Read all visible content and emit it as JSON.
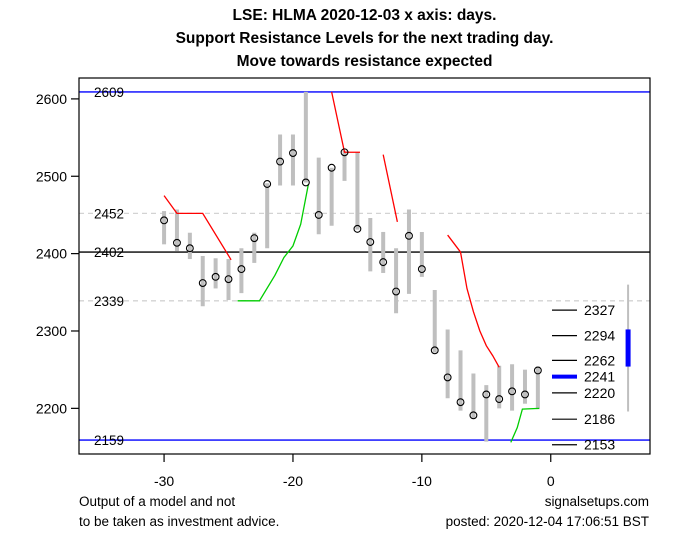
{
  "title": {
    "line1": "LSE: HLMA 2020-12-03 x axis: days.",
    "line2": "Support Resistance Levels for the next trading day.",
    "line3": "Move towards resistance expected"
  },
  "footer": {
    "left_line1": "Output of a model and not",
    "left_line2": "to be taken as investment advice.",
    "right_line1": "signalsetups.com",
    "right_line2": "posted: 2020-12-04 17:06:51 BST"
  },
  "colors": {
    "bar_gray": "#BFBFBF",
    "dashed_gray": "#D3D3D3",
    "level_blue": "#0000FF",
    "axis_black": "#000000",
    "trend_red": "#FF0000",
    "trend_green": "#00CD00",
    "forecast_blue": "#0000FF",
    "forecast_whisker": "#BFBFBF"
  },
  "chart_data": {
    "type": "hlc-candlestick",
    "xlabel": "days",
    "x_ticks": [
      -30,
      -20,
      -10,
      0
    ],
    "y_ticks": [
      2200,
      2300,
      2400,
      2500,
      2600
    ],
    "xlim": [
      -36.6,
      7.7
    ],
    "ylim": [
      2141,
      2627
    ],
    "grid": "off",
    "levels": [
      {
        "label": "2609",
        "value": 2609,
        "color": "blue",
        "style": "solid"
      },
      {
        "label": "2452",
        "value": 2452,
        "color": "gray",
        "style": "dashed"
      },
      {
        "label": "2402",
        "value": 2402,
        "color": "black",
        "style": "solid"
      },
      {
        "label": "2339",
        "value": 2339,
        "color": "gray",
        "style": "dashed"
      },
      {
        "label": "2159",
        "value": 2159,
        "color": "blue",
        "style": "solid"
      }
    ],
    "legend_position": "right-inside",
    "legend": [
      {
        "label": "2327",
        "value": 2327,
        "highlight": false
      },
      {
        "label": "2294",
        "value": 2294,
        "highlight": false
      },
      {
        "label": "2262",
        "value": 2262,
        "highlight": false
      },
      {
        "label": "2241",
        "value": 2241,
        "highlight": true
      },
      {
        "label": "2220",
        "value": 2220,
        "highlight": false
      },
      {
        "label": "2186",
        "value": 2186,
        "highlight": false
      },
      {
        "label": "2153",
        "value": 2153,
        "highlight": false
      }
    ],
    "candles": [
      {
        "day": -30,
        "high": 2455,
        "low": 2412,
        "close": 2443
      },
      {
        "day": -29,
        "high": 2457,
        "low": 2403,
        "close": 2414
      },
      {
        "day": -28,
        "high": 2427,
        "low": 2393,
        "close": 2407
      },
      {
        "day": -27,
        "high": 2397,
        "low": 2332,
        "close": 2362
      },
      {
        "day": -26,
        "high": 2394,
        "low": 2355,
        "close": 2370
      },
      {
        "day": -25,
        "high": 2393,
        "low": 2340,
        "close": 2367
      },
      {
        "day": -24,
        "high": 2407,
        "low": 2349,
        "close": 2380
      },
      {
        "day": -23,
        "high": 2427,
        "low": 2388,
        "close": 2420
      },
      {
        "day": -22,
        "high": 2491,
        "low": 2407,
        "close": 2490
      },
      {
        "day": -21,
        "high": 2554,
        "low": 2488,
        "close": 2519
      },
      {
        "day": -20,
        "high": 2554,
        "low": 2488,
        "close": 2530
      },
      {
        "day": -19,
        "high": 2609,
        "low": 2492,
        "close": 2492
      },
      {
        "day": -18,
        "high": 2524,
        "low": 2425,
        "close": 2450
      },
      {
        "day": -17,
        "high": 2511,
        "low": 2436,
        "close": 2511
      },
      {
        "day": -16,
        "high": 2533,
        "low": 2494,
        "close": 2531
      },
      {
        "day": -15,
        "high": 2531,
        "low": 2431,
        "close": 2432
      },
      {
        "day": -14,
        "high": 2446,
        "low": 2377,
        "close": 2415
      },
      {
        "day": -13,
        "high": 2428,
        "low": 2375,
        "close": 2389
      },
      {
        "day": -12,
        "high": 2407,
        "low": 2323,
        "close": 2351
      },
      {
        "day": -11,
        "high": 2457,
        "low": 2348,
        "close": 2423
      },
      {
        "day": -10,
        "high": 2428,
        "low": 2370,
        "close": 2380
      },
      {
        "day": -9,
        "high": 2353,
        "low": 2272,
        "close": 2275
      },
      {
        "day": -8,
        "high": 2302,
        "low": 2213,
        "close": 2240
      },
      {
        "day": -7,
        "high": 2275,
        "low": 2197,
        "close": 2208
      },
      {
        "day": -6,
        "high": 2245,
        "low": 2187,
        "close": 2191
      },
      {
        "day": -5,
        "high": 2230,
        "low": 2157,
        "close": 2218
      },
      {
        "day": -4,
        "high": 2255,
        "low": 2200,
        "close": 2212
      },
      {
        "day": -3,
        "high": 2257,
        "low": 2197,
        "close": 2222
      },
      {
        "day": -2,
        "high": 2250,
        "low": 2206,
        "close": 2218
      },
      {
        "day": -1,
        "high": 2254,
        "low": 2199,
        "close": 2249
      }
    ],
    "trend_lines": [
      {
        "color": "red",
        "points": [
          [
            -30,
            2475
          ],
          [
            -29,
            2452
          ],
          [
            -27,
            2452
          ],
          [
            -24.8,
            2392
          ]
        ]
      },
      {
        "color": "red",
        "points": [
          [
            -17,
            2609
          ],
          [
            -16,
            2531
          ],
          [
            -14.8,
            2531
          ]
        ]
      },
      {
        "color": "red",
        "points": [
          [
            -13,
            2528
          ],
          [
            -11.9,
            2441
          ]
        ]
      },
      {
        "color": "red",
        "points": [
          [
            -8,
            2424
          ],
          [
            -7,
            2402
          ],
          [
            -6.5,
            2355
          ],
          [
            -6,
            2325
          ],
          [
            -5.5,
            2300
          ],
          [
            -5,
            2281
          ],
          [
            -4.5,
            2268
          ],
          [
            -4,
            2253
          ]
        ]
      },
      {
        "color": "green",
        "points": [
          [
            -24.3,
            2339
          ],
          [
            -22.6,
            2339
          ],
          [
            -21.4,
            2372
          ],
          [
            -20.7,
            2395
          ],
          [
            -20,
            2410
          ],
          [
            -19.4,
            2438
          ],
          [
            -18.8,
            2490
          ]
        ]
      },
      {
        "color": "green",
        "points": [
          [
            -3.1,
            2156
          ],
          [
            -2.6,
            2175
          ],
          [
            -2.2,
            2199
          ],
          [
            -0.9,
            2200
          ]
        ]
      }
    ],
    "forecast": {
      "day": 6,
      "whisker_high": 2360,
      "whisker_low": 2196,
      "box_high": 2302,
      "box_low": 2254
    }
  }
}
